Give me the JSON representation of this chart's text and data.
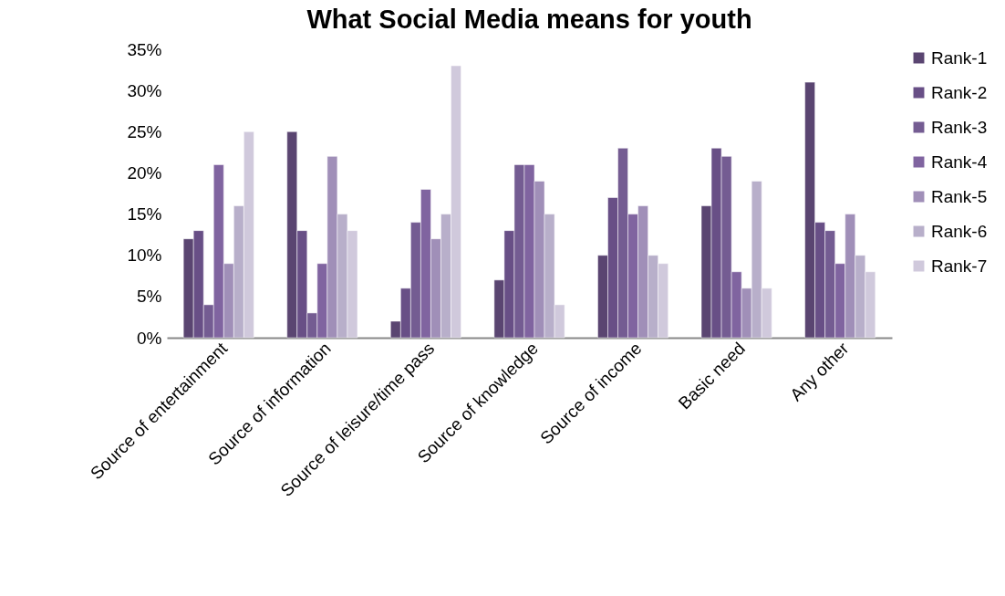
{
  "chart_data": {
    "type": "bar",
    "title": "What Social Media means for youth",
    "categories": [
      "Source of entertainment",
      "Source of information",
      "Source of leisure/time pass",
      "Source of knowledge",
      "Source of income",
      "Basic need",
      "Any other"
    ],
    "series": [
      {
        "name": "Rank-1",
        "color": "#5a4571",
        "values": [
          12,
          25,
          2,
          7,
          10,
          16,
          31
        ]
      },
      {
        "name": "Rank-2",
        "color": "#684f86",
        "values": [
          13,
          13,
          6,
          13,
          17,
          23,
          14
        ]
      },
      {
        "name": "Rank-3",
        "color": "#745c92",
        "values": [
          4,
          3,
          14,
          21,
          23,
          22,
          13
        ]
      },
      {
        "name": "Rank-4",
        "color": "#8064a0",
        "values": [
          21,
          9,
          18,
          21,
          15,
          8,
          9
        ]
      },
      {
        "name": "Rank-5",
        "color": "#a08fb8",
        "values": [
          9,
          22,
          12,
          19,
          16,
          6,
          15
        ]
      },
      {
        "name": "Rank-6",
        "color": "#b8afca",
        "values": [
          16,
          15,
          15,
          15,
          10,
          19,
          10
        ]
      },
      {
        "name": "Rank-7",
        "color": "#d0c9dc",
        "values": [
          25,
          13,
          33,
          4,
          9,
          6,
          8
        ]
      }
    ],
    "ylim": [
      0,
      35
    ],
    "yticks": [
      {
        "value": 0,
        "label": "0%"
      },
      {
        "value": 5,
        "label": "5%"
      },
      {
        "value": 10,
        "label": "10%"
      },
      {
        "value": 15,
        "label": "15%"
      },
      {
        "value": 20,
        "label": "20%"
      },
      {
        "value": 25,
        "label": "25%"
      },
      {
        "value": 30,
        "label": "30%"
      },
      {
        "value": 35,
        "label": "35%"
      }
    ],
    "grid": false,
    "legend": "right"
  }
}
